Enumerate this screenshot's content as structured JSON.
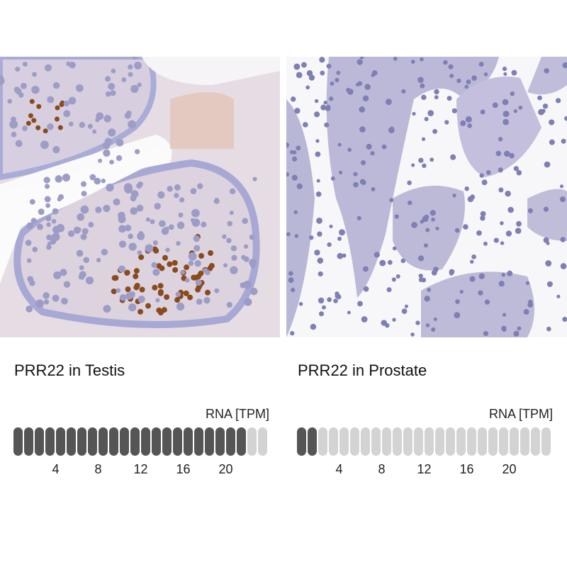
{
  "panels": [
    {
      "title": "PRR22 in Testis",
      "tissue": "Testis",
      "rna_label": "RNA [TPM]",
      "filled_bars": 22,
      "total_bars": 24,
      "ticks": [
        "4",
        "8",
        "12",
        "16",
        "20"
      ]
    },
    {
      "title": "PRR22 in Prostate",
      "tissue": "Prostate",
      "rna_label": "RNA [TPM]",
      "filled_bars": 2,
      "total_bars": 24,
      "ticks": [
        "4",
        "8",
        "12",
        "16",
        "20"
      ]
    }
  ],
  "colors": {
    "bar_filled": "#555555",
    "bar_empty": "#d3d3d3",
    "stain_brown": "#8a4a1e",
    "stain_blue": "#8d8fc0"
  }
}
